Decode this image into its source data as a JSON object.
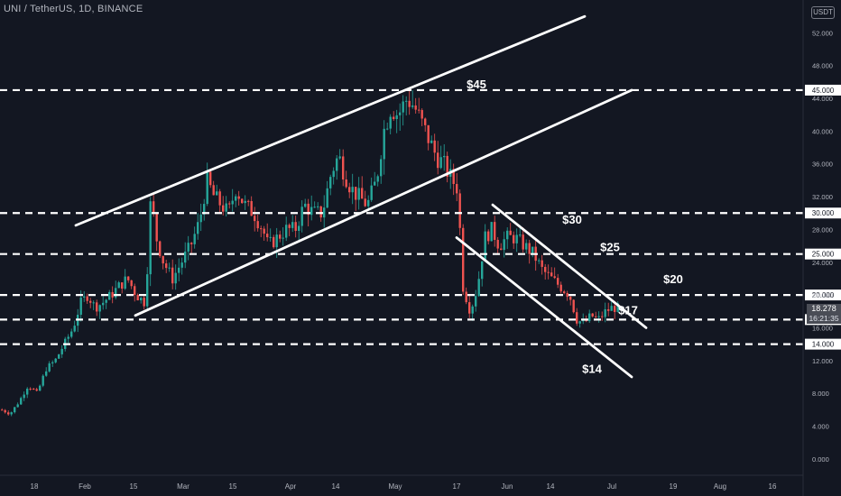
{
  "header": {
    "ticker": "UNI / TetherUS, 1D, BINANCE",
    "currency_badge": "USDT"
  },
  "last_price": {
    "value": "18.278",
    "countdown": "16:21:35"
  },
  "colors": {
    "background": "#131722",
    "up": "#26a69a",
    "down": "#ef5350",
    "lines": "#ffffff",
    "axis_text": "#b2b5be"
  },
  "chart_data": {
    "type": "candlestick",
    "title": "UNI / TetherUS, 1D, BINANCE",
    "x_tick_labels": [
      "18",
      "Feb",
      "15",
      "Mar",
      "15",
      "Apr",
      "14",
      "May",
      "17",
      "Jun",
      "14",
      "Jul",
      "19",
      "Aug",
      "16"
    ],
    "y_tick_labels": [
      "0.000",
      "4.000",
      "8.000",
      "12.000",
      "16.000",
      "20.000",
      "24.000",
      "28.000",
      "32.000",
      "36.000",
      "40.000",
      "44.000",
      "48.000",
      "52.000"
    ],
    "ylim": [
      -2,
      56
    ],
    "horizontal_levels": [
      {
        "value": 45,
        "label": "$45",
        "axis_label": "45.000"
      },
      {
        "value": 30,
        "label": "$30",
        "axis_label": "30.000"
      },
      {
        "value": 25,
        "label": "$25",
        "axis_label": "25.000"
      },
      {
        "value": 20,
        "label": "$20",
        "axis_label": "20.000"
      },
      {
        "value": 17,
        "label": "$17",
        "axis_label": "17.000"
      },
      {
        "value": 14,
        "label": "$14",
        "axis_label": "14.000"
      }
    ],
    "price_points": [
      [
        0,
        6
      ],
      [
        10,
        5.5
      ],
      [
        20,
        7
      ],
      [
        30,
        9
      ],
      [
        40,
        8
      ],
      [
        50,
        11
      ],
      [
        60,
        12
      ],
      [
        70,
        14
      ],
      [
        80,
        16
      ],
      [
        88,
        19
      ],
      [
        96,
        20
      ],
      [
        104,
        18.5
      ],
      [
        112,
        19
      ],
      [
        122,
        20
      ],
      [
        130,
        21
      ],
      [
        140,
        22
      ],
      [
        150,
        20
      ],
      [
        160,
        19
      ],
      [
        166,
        32
      ],
      [
        172,
        27
      ],
      [
        180,
        24
      ],
      [
        190,
        22
      ],
      [
        200,
        24
      ],
      [
        210,
        26
      ],
      [
        220,
        29
      ],
      [
        228,
        34
      ],
      [
        236,
        32
      ],
      [
        244,
        31
      ],
      [
        252,
        30
      ],
      [
        260,
        33
      ],
      [
        270,
        31
      ],
      [
        280,
        30
      ],
      [
        290,
        28
      ],
      [
        296,
        26
      ],
      [
        306,
        27
      ],
      [
        316,
        28
      ],
      [
        326,
        28
      ],
      [
        336,
        31
      ],
      [
        346,
        30
      ],
      [
        356,
        30
      ],
      [
        366,
        35
      ],
      [
        374,
        37
      ],
      [
        380,
        35
      ],
      [
        388,
        33
      ],
      [
        396,
        32
      ],
      [
        406,
        31
      ],
      [
        416,
        34
      ],
      [
        424,
        40
      ],
      [
        432,
        43
      ],
      [
        440,
        42
      ],
      [
        450,
        44
      ],
      [
        458,
        43
      ],
      [
        466,
        41
      ],
      [
        474,
        39
      ],
      [
        482,
        37
      ],
      [
        490,
        36
      ],
      [
        500,
        34
      ],
      [
        506,
        33
      ],
      [
        512,
        21
      ],
      [
        520,
        18
      ],
      [
        528,
        21
      ],
      [
        536,
        27
      ],
      [
        544,
        28
      ],
      [
        552,
        26
      ],
      [
        560,
        27
      ],
      [
        570,
        27
      ],
      [
        580,
        26
      ],
      [
        590,
        25
      ],
      [
        600,
        23
      ],
      [
        610,
        22
      ],
      [
        620,
        21
      ],
      [
        630,
        20
      ],
      [
        638,
        17
      ],
      [
        646,
        16.5
      ],
      [
        654,
        17.5
      ],
      [
        662,
        17
      ],
      [
        670,
        18
      ],
      [
        678,
        18.5
      ],
      [
        686,
        18.3
      ]
    ],
    "channels": [
      {
        "name": "rising-channel-upper",
        "from": [
          84,
          28.5
        ],
        "to": [
          648,
          54
        ]
      },
      {
        "name": "rising-channel-lower",
        "from": [
          150,
          17.5
        ],
        "to": [
          700,
          45
        ]
      },
      {
        "name": "falling-channel-upper",
        "from": [
          546,
          31
        ],
        "to": [
          716,
          16
        ]
      },
      {
        "name": "falling-channel-lower",
        "from": [
          506,
          27
        ],
        "to": [
          700,
          10
        ]
      }
    ]
  }
}
